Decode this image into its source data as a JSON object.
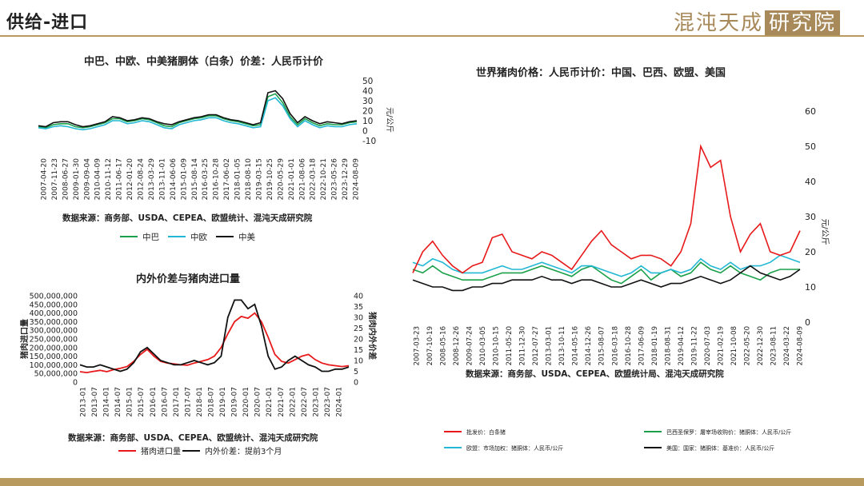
{
  "header": {
    "title": "供给-进口",
    "logo_text": "混沌天成",
    "logo_box": "研究院"
  },
  "colors": {
    "accent": "#b89a5e",
    "red": "#e8191a",
    "green": "#1aa04a",
    "cyan": "#22b8d4",
    "black": "#111111"
  },
  "chart_data": [
    {
      "id": "spread",
      "type": "line",
      "title": "中巴、中欧、中美猪胴体（白条）价差：人民币计价",
      "ylabel": "元/公斤",
      "ylim": [
        -10,
        50
      ],
      "yticks": [
        -10,
        0,
        10,
        20,
        30,
        40,
        50
      ],
      "x_ticklabels": [
        "2007-04-20",
        "2007-11-23",
        "2008-06-27",
        "2009-01-30",
        "2009-09-04",
        "2010-04-09",
        "2010-11-12",
        "2011-06-17",
        "2012-01-20",
        "2012-08-24",
        "2013-03-29",
        "2013-11-01",
        "2014-06-06",
        "2015-01-09",
        "2015-08-14",
        "2016-03-25",
        "2016-10-28",
        "2017-06-02",
        "2018-01-05",
        "2018-08-10",
        "2019-03-15",
        "2019-10-25",
        "2020-05-29",
        "2021-01-01",
        "2021-08-06",
        "2022-03-18",
        "2022-10-21",
        "2023-05-26",
        "2023-12-29",
        "2024-08-09"
      ],
      "source": "数据来源：商务部、USDA、CEPEA、欧盟统计、混沌天成研究院",
      "series": [
        {
          "name": "中巴",
          "color": "#1aa04a",
          "values": [
            4,
            3,
            6,
            7,
            7,
            4,
            3,
            4,
            6,
            8,
            12,
            12,
            9,
            10,
            12,
            11,
            8,
            5,
            4,
            8,
            10,
            12,
            13,
            15,
            15,
            12,
            10,
            9,
            7,
            5,
            6,
            34,
            37,
            28,
            14,
            6,
            12,
            8,
            5,
            7,
            6,
            6,
            8,
            9
          ]
        },
        {
          "name": "中欧",
          "color": "#22b8d4",
          "values": [
            3,
            2,
            4,
            5,
            4,
            2,
            1,
            2,
            4,
            6,
            10,
            10,
            7,
            8,
            10,
            9,
            6,
            3,
            2,
            6,
            8,
            10,
            11,
            13,
            13,
            10,
            8,
            7,
            5,
            3,
            4,
            30,
            33,
            25,
            12,
            4,
            10,
            6,
            3,
            5,
            4,
            4,
            6,
            7
          ]
        },
        {
          "name": "中美",
          "color": "#111111",
          "values": [
            5,
            4,
            8,
            9,
            9,
            6,
            4,
            5,
            7,
            9,
            14,
            13,
            10,
            11,
            13,
            12,
            9,
            7,
            6,
            9,
            11,
            13,
            14,
            16,
            16,
            13,
            11,
            10,
            8,
            6,
            8,
            38,
            40,
            32,
            17,
            8,
            14,
            10,
            7,
            9,
            8,
            7,
            9,
            10
          ]
        }
      ]
    },
    {
      "id": "imports",
      "type": "line",
      "title": "内外价差与猪肉进口量",
      "ylabel_left": "猪肉进口量",
      "ylabel_right": "猪肉内外价差",
      "ylim_left": [
        0,
        500000000
      ],
      "ylim_right": [
        0,
        40
      ],
      "yticks_left": [
        "0",
        "50,000,000",
        "100,000,000",
        "150,000,000",
        "200,000,000",
        "250,000,000",
        "300,000,000",
        "350,000,000",
        "400,000,000",
        "450,000,000",
        "500,000,000"
      ],
      "yticks_right": [
        0,
        5,
        10,
        15,
        20,
        25,
        30,
        35,
        40
      ],
      "x_ticklabels": [
        "2013-01",
        "2013-07",
        "2014-01",
        "2014-07",
        "2015-01",
        "2015-07",
        "2016-01",
        "2016-07",
        "2017-01",
        "2017-07",
        "2018-01",
        "2018-07",
        "2019-01",
        "2019-07",
        "2020-01",
        "2020-07",
        "2021-01",
        "2021-07",
        "2022-01",
        "2022-07",
        "2023-01",
        "2023-07",
        "2024-01"
      ],
      "source": "数据来源：商务部、USDA、CEPEA、欧盟统计、混沌天成研究院",
      "series": [
        {
          "name": "猪肉进口量",
          "axis": "left",
          "color": "#e8191a",
          "values": [
            60000000,
            55000000,
            62000000,
            68000000,
            60000000,
            72000000,
            80000000,
            90000000,
            120000000,
            160000000,
            190000000,
            150000000,
            120000000,
            110000000,
            105000000,
            100000000,
            98000000,
            110000000,
            120000000,
            130000000,
            150000000,
            200000000,
            280000000,
            350000000,
            380000000,
            370000000,
            400000000,
            350000000,
            260000000,
            160000000,
            120000000,
            110000000,
            130000000,
            150000000,
            160000000,
            130000000,
            110000000,
            100000000,
            95000000,
            90000000,
            95000000
          ]
        },
        {
          "name": "内外价差：提前3个月",
          "axis": "right",
          "color": "#111111",
          "values": [
            8,
            7,
            7,
            8,
            7,
            6,
            5,
            6,
            9,
            14,
            16,
            13,
            10,
            9,
            8,
            8,
            9,
            10,
            9,
            8,
            9,
            12,
            30,
            38,
            38,
            34,
            36,
            26,
            12,
            6,
            7,
            10,
            12,
            10,
            8,
            7,
            5,
            5,
            6,
            6,
            7
          ]
        }
      ]
    },
    {
      "id": "world",
      "type": "line",
      "title": "世界猪肉价格：人民币计价：中国、巴西、欧盟、美国",
      "ylabel": "元/公斤",
      "ylim": [
        0,
        60
      ],
      "yticks": [
        0,
        10,
        20,
        30,
        40,
        50,
        60
      ],
      "x_ticklabels": [
        "2007-03-23",
        "2007-10-19",
        "2008-05-16",
        "2008-12-26",
        "2009-07-24",
        "2010-03-05",
        "2010-10-15",
        "2011-05-20",
        "2011-12-30",
        "2012-07-27",
        "2013-03-01",
        "2013-10-11",
        "2014-05-16",
        "2014-12-26",
        "2015-08-07",
        "2016-03-18",
        "2016-10-28",
        "2017-06-09",
        "2018-01-19",
        "2018-08-31",
        "2019-04-12",
        "2019-11-22",
        "2020-07-03",
        "2021-02-19",
        "2021-10-08",
        "2022-05-20",
        "2022-12-30",
        "2023-08-11",
        "2024-03-22",
        "2024-08-09"
      ],
      "source": "数据来源：商务部、USDA、CEPEA、欧盟统计局、混沌天成研究院",
      "series": [
        {
          "name": "批发价：白条猪",
          "color": "#e8191a",
          "values": [
            14,
            20,
            23,
            19,
            16,
            14,
            16,
            17,
            24,
            25,
            20,
            19,
            18,
            20,
            19,
            17,
            15,
            19,
            23,
            26,
            22,
            20,
            18,
            19,
            19,
            18,
            16,
            20,
            28,
            50,
            44,
            46,
            30,
            20,
            25,
            28,
            20,
            19,
            20,
            26
          ]
        },
        {
          "name": "巴西圣保罗：屠宰场收购价：猪胴体：人民币/公斤",
          "color": "#1aa04a",
          "values": [
            15,
            14,
            16,
            14,
            13,
            12,
            12,
            12,
            13,
            14,
            14,
            14,
            15,
            16,
            15,
            14,
            13,
            15,
            16,
            14,
            12,
            11,
            13,
            15,
            12,
            14,
            15,
            13,
            14,
            17,
            15,
            14,
            16,
            14,
            13,
            12,
            14,
            15,
            15,
            15
          ]
        },
        {
          "name": "欧盟：市场加权：猪胴体：人民币/公斤",
          "color": "#22b8d4",
          "values": [
            17,
            16,
            18,
            17,
            15,
            14,
            14,
            14,
            15,
            16,
            15,
            15,
            16,
            17,
            16,
            15,
            14,
            16,
            16,
            15,
            14,
            13,
            14,
            16,
            14,
            14,
            15,
            14,
            15,
            18,
            16,
            15,
            17,
            15,
            16,
            16,
            17,
            19,
            18,
            17
          ]
        },
        {
          "name": "美国：国家：猪胴体：基准价：人民币/公斤",
          "color": "#111111",
          "values": [
            12,
            11,
            10,
            10,
            9,
            9,
            10,
            10,
            11,
            11,
            12,
            12,
            12,
            13,
            12,
            12,
            11,
            12,
            12,
            11,
            10,
            10,
            11,
            12,
            11,
            10,
            11,
            11,
            12,
            13,
            12,
            11,
            12,
            14,
            16,
            14,
            13,
            12,
            13,
            15
          ]
        }
      ]
    }
  ]
}
